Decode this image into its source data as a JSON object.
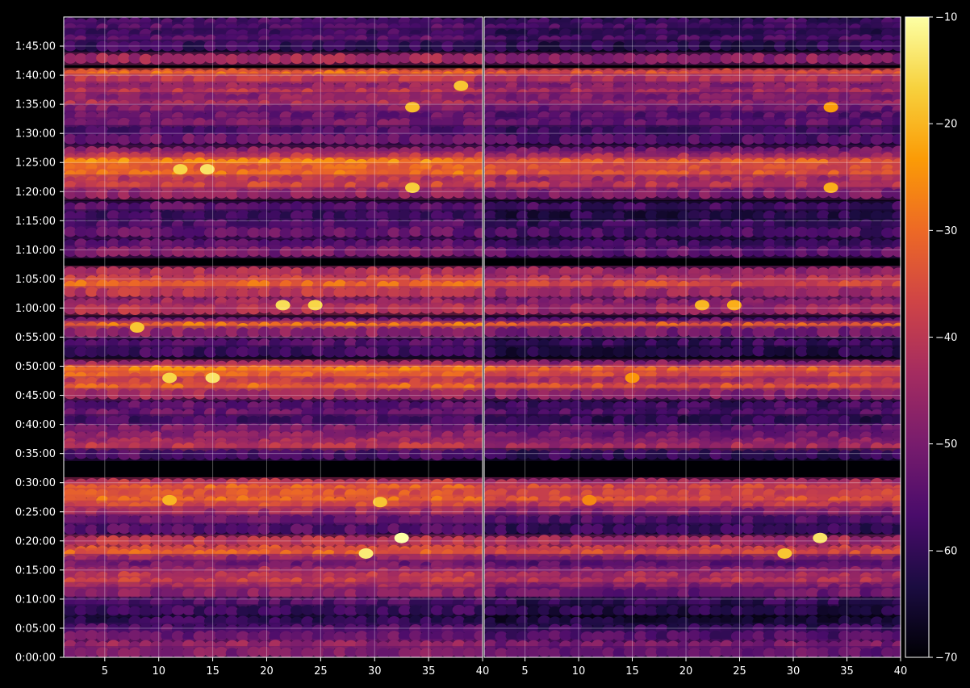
{
  "theme": {
    "background": "#000000",
    "axis_color": "#ffffff",
    "grid_color": "#ffffff",
    "colormap": "inferno",
    "colormap_stops": [
      "#000004",
      "#1b0c41",
      "#4a0c6b",
      "#781c6d",
      "#a52c60",
      "#cf4446",
      "#ed6925",
      "#fb9b06",
      "#f7d13d",
      "#fcffa4"
    ]
  },
  "chart_data": {
    "type": "heatmap",
    "title": "",
    "panels": [
      {
        "name": "",
        "xlim": [
          1.2,
          40
        ],
        "xticks": [
          5,
          10,
          15,
          20,
          25,
          30,
          35,
          40
        ],
        "xticklabels": [
          "5",
          "10",
          "15",
          "20",
          "25",
          "30",
          "35",
          "40"
        ],
        "xlabel": ""
      },
      {
        "name": "",
        "xlim": [
          1.2,
          40
        ],
        "xticks": [
          5,
          10,
          15,
          20,
          25,
          30,
          35,
          40
        ],
        "xticklabels": [
          "5",
          "10",
          "15",
          "20",
          "25",
          "30",
          "35",
          "40"
        ],
        "xlabel": ""
      }
    ],
    "y_axis": {
      "units": "seconds",
      "ylim": [
        0,
        6600
      ],
      "ticks": [
        0,
        300,
        600,
        900,
        1200,
        1500,
        1800,
        2100,
        2400,
        2700,
        3000,
        3300,
        3600,
        3900,
        4200,
        4500,
        4800,
        5100,
        5400,
        5700,
        6000,
        6300
      ],
      "ticklabels": [
        "0:00:00",
        "0:05:00",
        "0:10:00",
        "0:15:00",
        "0:20:00",
        "0:25:00",
        "0:30:00",
        "0:35:00",
        "0:40:00",
        "0:45:00",
        "0:50:00",
        "0:55:00",
        "1:00:00",
        "1:05:00",
        "1:10:00",
        "1:15:00",
        "1:20:00",
        "1:25:00",
        "1:30:00",
        "1:35:00",
        "1:40:00",
        "1:45:00"
      ],
      "label": ""
    },
    "grid": true,
    "colorbar": {
      "range": [
        -70,
        -10
      ],
      "ticks": [
        -10,
        -20,
        -30,
        -40,
        -50,
        -60,
        -70
      ],
      "ticklabels": [
        "−10",
        "−20",
        "−30",
        "−40",
        "−50",
        "−60",
        "−70"
      ],
      "placement": "right",
      "label": ""
    },
    "series": [
      {
        "panel": 0,
        "rows": [
          {
            "t": 6540,
            "v": -57
          },
          {
            "t": 6480,
            "v": -55
          },
          {
            "t": 6420,
            "v": -58
          },
          {
            "t": 6360,
            "v": -54
          },
          {
            "t": 6300,
            "v": -59
          },
          {
            "t": 6170,
            "v": -44
          },
          {
            "t": 6010,
            "v": -34
          },
          {
            "t": 5990,
            "v": -30
          },
          {
            "t": 5950,
            "v": -40
          },
          {
            "t": 5870,
            "v": -45
          },
          {
            "t": 5810,
            "v": -40
          },
          {
            "t": 5760,
            "v": -47
          },
          {
            "t": 5690,
            "v": -42
          },
          {
            "t": 5640,
            "v": -49
          },
          {
            "t": 5570,
            "v": -52
          },
          {
            "t": 5500,
            "v": -50
          },
          {
            "t": 5420,
            "v": -56
          },
          {
            "t": 5340,
            "v": -52
          },
          {
            "t": 5210,
            "v": -48
          },
          {
            "t": 5150,
            "v": -40
          },
          {
            "t": 5090,
            "v": -26
          },
          {
            "t": 5030,
            "v": -32
          },
          {
            "t": 4970,
            "v": -29
          },
          {
            "t": 4910,
            "v": -40
          },
          {
            "t": 4850,
            "v": -37
          },
          {
            "t": 4780,
            "v": -46
          },
          {
            "t": 4640,
            "v": -54
          },
          {
            "t": 4550,
            "v": -58
          },
          {
            "t": 4460,
            "v": -56
          },
          {
            "t": 4380,
            "v": -53
          },
          {
            "t": 4260,
            "v": -54
          },
          {
            "t": 4180,
            "v": -50
          },
          {
            "t": 3970,
            "v": -42
          },
          {
            "t": 3890,
            "v": -38
          },
          {
            "t": 3830,
            "v": -31
          },
          {
            "t": 3760,
            "v": -40
          },
          {
            "t": 3650,
            "v": -45
          },
          {
            "t": 3590,
            "v": -41
          },
          {
            "t": 3450,
            "v": -50
          },
          {
            "t": 3400,
            "v": -29
          },
          {
            "t": 3350,
            "v": -47
          },
          {
            "t": 3230,
            "v": -55
          },
          {
            "t": 3150,
            "v": -58
          },
          {
            "t": 3010,
            "v": -44
          },
          {
            "t": 2950,
            "v": -27
          },
          {
            "t": 2890,
            "v": -32
          },
          {
            "t": 2830,
            "v": -39
          },
          {
            "t": 2770,
            "v": -31
          },
          {
            "t": 2710,
            "v": -44
          },
          {
            "t": 2590,
            "v": -54
          },
          {
            "t": 2510,
            "v": -52
          },
          {
            "t": 2440,
            "v": -57
          },
          {
            "t": 2350,
            "v": -50
          },
          {
            "t": 2280,
            "v": -47
          },
          {
            "t": 2210,
            "v": -44
          },
          {
            "t": 2160,
            "v": -40
          },
          {
            "t": 2090,
            "v": -56
          },
          {
            "t": 1790,
            "v": -40
          },
          {
            "t": 1730,
            "v": -32
          },
          {
            "t": 1680,
            "v": -34
          },
          {
            "t": 1610,
            "v": -30
          },
          {
            "t": 1550,
            "v": -36
          },
          {
            "t": 1490,
            "v": -44
          },
          {
            "t": 1410,
            "v": -52
          },
          {
            "t": 1320,
            "v": -55
          },
          {
            "t": 1200,
            "v": -40
          },
          {
            "t": 1100,
            "v": -35
          },
          {
            "t": 1060,
            "v": -32
          },
          {
            "t": 1000,
            "v": -46
          },
          {
            "t": 940,
            "v": -51
          },
          {
            "t": 880,
            "v": -44
          },
          {
            "t": 830,
            "v": -40
          },
          {
            "t": 770,
            "v": -38
          },
          {
            "t": 710,
            "v": -44
          },
          {
            "t": 660,
            "v": -48
          },
          {
            "t": 560,
            "v": -56
          },
          {
            "t": 480,
            "v": -58
          },
          {
            "t": 370,
            "v": -60
          },
          {
            "t": 290,
            "v": -55
          },
          {
            "t": 220,
            "v": -52
          },
          {
            "t": 120,
            "v": -46
          },
          {
            "t": 50,
            "v": -49
          }
        ]
      },
      {
        "panel": 1,
        "rows": [
          {
            "t": 6540,
            "v": -59
          },
          {
            "t": 6480,
            "v": -57
          },
          {
            "t": 6420,
            "v": -60
          },
          {
            "t": 6360,
            "v": -57
          },
          {
            "t": 6300,
            "v": -61
          },
          {
            "t": 6170,
            "v": -47
          },
          {
            "t": 6010,
            "v": -37
          },
          {
            "t": 5990,
            "v": -35
          },
          {
            "t": 5950,
            "v": -43
          },
          {
            "t": 5870,
            "v": -48
          },
          {
            "t": 5810,
            "v": -43
          },
          {
            "t": 5760,
            "v": -50
          },
          {
            "t": 5690,
            "v": -46
          },
          {
            "t": 5640,
            "v": -52
          },
          {
            "t": 5570,
            "v": -55
          },
          {
            "t": 5500,
            "v": -53
          },
          {
            "t": 5420,
            "v": -59
          },
          {
            "t": 5340,
            "v": -56
          },
          {
            "t": 5210,
            "v": -51
          },
          {
            "t": 5150,
            "v": -44
          },
          {
            "t": 5090,
            "v": -32
          },
          {
            "t": 5030,
            "v": -36
          },
          {
            "t": 4970,
            "v": -34
          },
          {
            "t": 4910,
            "v": -44
          },
          {
            "t": 4850,
            "v": -41
          },
          {
            "t": 4780,
            "v": -50
          },
          {
            "t": 4640,
            "v": -58
          },
          {
            "t": 4550,
            "v": -62
          },
          {
            "t": 4460,
            "v": -60
          },
          {
            "t": 4380,
            "v": -57
          },
          {
            "t": 4260,
            "v": -58
          },
          {
            "t": 4180,
            "v": -54
          },
          {
            "t": 3970,
            "v": -46
          },
          {
            "t": 3890,
            "v": -42
          },
          {
            "t": 3830,
            "v": -36
          },
          {
            "t": 3760,
            "v": -44
          },
          {
            "t": 3650,
            "v": -49
          },
          {
            "t": 3590,
            "v": -45
          },
          {
            "t": 3450,
            "v": -54
          },
          {
            "t": 3400,
            "v": -33
          },
          {
            "t": 3350,
            "v": -51
          },
          {
            "t": 3230,
            "v": -59
          },
          {
            "t": 3150,
            "v": -62
          },
          {
            "t": 3010,
            "v": -48
          },
          {
            "t": 2950,
            "v": -32
          },
          {
            "t": 2890,
            "v": -36
          },
          {
            "t": 2830,
            "v": -43
          },
          {
            "t": 2770,
            "v": -35
          },
          {
            "t": 2710,
            "v": -48
          },
          {
            "t": 2590,
            "v": -58
          },
          {
            "t": 2510,
            "v": -56
          },
          {
            "t": 2440,
            "v": -61
          },
          {
            "t": 2350,
            "v": -54
          },
          {
            "t": 2280,
            "v": -51
          },
          {
            "t": 2210,
            "v": -48
          },
          {
            "t": 2160,
            "v": -44
          },
          {
            "t": 2090,
            "v": -60
          },
          {
            "t": 1790,
            "v": -44
          },
          {
            "t": 1730,
            "v": -36
          },
          {
            "t": 1680,
            "v": -38
          },
          {
            "t": 1610,
            "v": -34
          },
          {
            "t": 1550,
            "v": -40
          },
          {
            "t": 1490,
            "v": -48
          },
          {
            "t": 1410,
            "v": -56
          },
          {
            "t": 1320,
            "v": -59
          },
          {
            "t": 1200,
            "v": -44
          },
          {
            "t": 1100,
            "v": -39
          },
          {
            "t": 1060,
            "v": -36
          },
          {
            "t": 1000,
            "v": -50
          },
          {
            "t": 940,
            "v": -55
          },
          {
            "t": 880,
            "v": -48
          },
          {
            "t": 830,
            "v": -44
          },
          {
            "t": 770,
            "v": -42
          },
          {
            "t": 710,
            "v": -48
          },
          {
            "t": 660,
            "v": -52
          },
          {
            "t": 560,
            "v": -60
          },
          {
            "t": 480,
            "v": -62
          },
          {
            "t": 370,
            "v": -64
          },
          {
            "t": 290,
            "v": -59
          },
          {
            "t": 220,
            "v": -56
          },
          {
            "t": 120,
            "v": -50
          },
          {
            "t": 50,
            "v": -53
          }
        ]
      }
    ],
    "hotspots": [
      {
        "panel": 0,
        "x": 32.5,
        "t": 1230,
        "v": -10
      },
      {
        "panel": 0,
        "x": 29.2,
        "t": 1070,
        "v": -13
      },
      {
        "panel": 0,
        "x": 15,
        "t": 2880,
        "v": -14
      },
      {
        "panel": 0,
        "x": 11,
        "t": 2880,
        "v": -16
      },
      {
        "panel": 0,
        "x": 14.5,
        "t": 5030,
        "v": -14
      },
      {
        "panel": 0,
        "x": 12,
        "t": 5030,
        "v": -16
      },
      {
        "panel": 0,
        "x": 21.5,
        "t": 3630,
        "v": -15
      },
      {
        "panel": 0,
        "x": 24.5,
        "t": 3630,
        "v": -16
      },
      {
        "panel": 0,
        "x": 33.5,
        "t": 4840,
        "v": -17
      },
      {
        "panel": 0,
        "x": 33.5,
        "t": 5670,
        "v": -19
      },
      {
        "panel": 0,
        "x": 8,
        "t": 3400,
        "v": -18
      },
      {
        "panel": 0,
        "x": 30.5,
        "t": 1600,
        "v": -18
      },
      {
        "panel": 0,
        "x": 11,
        "t": 1620,
        "v": -20
      },
      {
        "panel": 0,
        "x": 38,
        "t": 5890,
        "v": -18
      },
      {
        "panel": 1,
        "x": 32.5,
        "t": 1230,
        "v": -14
      },
      {
        "panel": 1,
        "x": 29.2,
        "t": 1070,
        "v": -18
      },
      {
        "panel": 1,
        "x": 21.5,
        "t": 3630,
        "v": -20
      },
      {
        "panel": 1,
        "x": 24.5,
        "t": 3630,
        "v": -21
      },
      {
        "panel": 1,
        "x": 33.5,
        "t": 4840,
        "v": -21
      },
      {
        "panel": 1,
        "x": 11,
        "t": 1620,
        "v": -26
      },
      {
        "panel": 1,
        "x": 15,
        "t": 2880,
        "v": -24
      },
      {
        "panel": 1,
        "x": 33.5,
        "t": 5670,
        "v": -23
      }
    ]
  }
}
